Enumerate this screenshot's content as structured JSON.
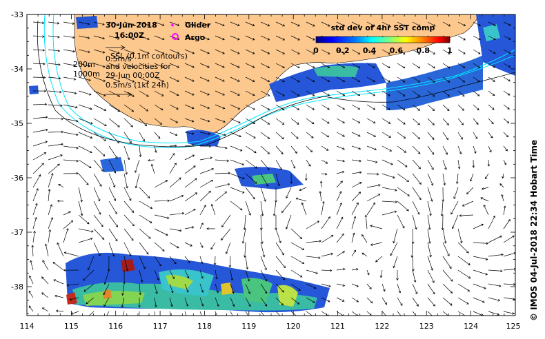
{
  "map": {
    "date": "30-Jun-2018",
    "time": "16:00Z",
    "legend": {
      "glider_label": "Glider",
      "argo_label": "Argo",
      "glider_color": "#ff00ff",
      "argo_color": "#ff00ff"
    },
    "ssh_note": "SSL (0.1m contours)",
    "vel_scale_top": "0.5m/s",
    "vel_note_1": "and velocities for",
    "vel_note_2": "29-Jun 00:00Z",
    "vel_note_3": "0.5m/s (1kt 24h)",
    "isobath_1": "200m",
    "isobath_2": "1000m",
    "colorbar": {
      "title": "std dev of 4hr SST comp",
      "ticks": [
        "0",
        "0.2",
        "0.4",
        "0.6",
        "0.8",
        "1"
      ],
      "colors": [
        "#00007f",
        "#0000ff",
        "#007fff",
        "#00ffff",
        "#7fff7f",
        "#ffff00",
        "#ff7f00",
        "#ff0000",
        "#7f0000"
      ]
    },
    "x_ticks": [
      "114",
      "115",
      "116",
      "117",
      "118",
      "119",
      "120",
      "121",
      "122",
      "123",
      "124",
      "125"
    ],
    "y_ticks": [
      "-33",
      "-34",
      "-35",
      "-36",
      "-37",
      "-38"
    ],
    "credit": "© IMOS 04-Jul-2018 22:34 Hobart Time",
    "colors": {
      "land": "#fcc88e",
      "isobath": "#00e5ff",
      "arrow": "#000000"
    }
  }
}
